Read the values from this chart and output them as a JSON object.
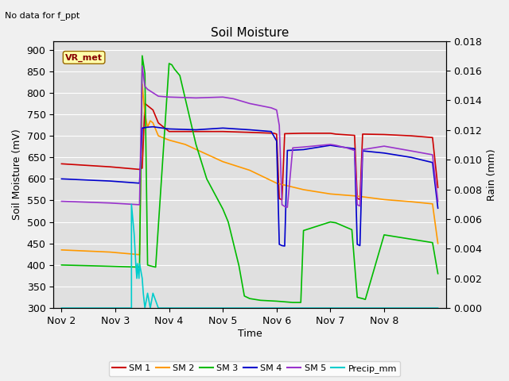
{
  "title": "Soil Moisture",
  "subtitle": "No data for f_ppt",
  "ylabel_left": "Soil Moisture (mV)",
  "ylabel_right": "Rain (mm)",
  "xlabel": "Time",
  "annotation": "VR_met",
  "plot_bg": "#e0e0e0",
  "fig_bg": "#f0f0f0",
  "ylim_left": [
    300,
    920
  ],
  "ylim_right": [
    0.0,
    0.018
  ],
  "xlim": [
    -0.15,
    7.15
  ],
  "yticks_left": [
    300,
    350,
    400,
    450,
    500,
    550,
    600,
    650,
    700,
    750,
    800,
    850,
    900
  ],
  "yticks_right": [
    0.0,
    0.002,
    0.004,
    0.006,
    0.008,
    0.01,
    0.012,
    0.014,
    0.016,
    0.018
  ],
  "xtick_labels": [
    "Nov 2",
    "Nov 3",
    "Nov 4",
    "Nov 5",
    "Nov 6",
    "Nov 7",
    "Nov 8"
  ],
  "xtick_positions": [
    0,
    1,
    2,
    3,
    4,
    5,
    6
  ],
  "SM1_color": "#cc0000",
  "SM2_color": "#ff9900",
  "SM3_color": "#00bb00",
  "SM4_color": "#0000cc",
  "SM5_color": "#9933cc",
  "Precip_color": "#00cccc",
  "SM1": [
    [
      0.0,
      635
    ],
    [
      0.9,
      628
    ],
    [
      1.45,
      622
    ],
    [
      1.5,
      625
    ],
    [
      1.55,
      775
    ],
    [
      1.6,
      770
    ],
    [
      1.7,
      760
    ],
    [
      1.8,
      730
    ],
    [
      2.0,
      710
    ],
    [
      2.5,
      710
    ],
    [
      3.0,
      710
    ],
    [
      3.5,
      708
    ],
    [
      3.95,
      706
    ],
    [
      4.0,
      704
    ],
    [
      4.05,
      554
    ],
    [
      4.1,
      552
    ],
    [
      4.15,
      705
    ],
    [
      4.5,
      706
    ],
    [
      5.0,
      706
    ],
    [
      5.1,
      704
    ],
    [
      5.45,
      701
    ],
    [
      5.5,
      555
    ],
    [
      5.55,
      552
    ],
    [
      5.6,
      704
    ],
    [
      6.0,
      703
    ],
    [
      6.5,
      700
    ],
    [
      6.9,
      696
    ],
    [
      7.0,
      580
    ]
  ],
  "SM2": [
    [
      0.0,
      435
    ],
    [
      0.9,
      430
    ],
    [
      1.45,
      424
    ],
    [
      1.5,
      820
    ],
    [
      1.55,
      750
    ],
    [
      1.6,
      720
    ],
    [
      1.65,
      735
    ],
    [
      1.7,
      730
    ],
    [
      1.8,
      700
    ],
    [
      2.0,
      690
    ],
    [
      2.3,
      680
    ],
    [
      3.0,
      640
    ],
    [
      3.5,
      620
    ],
    [
      4.0,
      590
    ],
    [
      4.5,
      575
    ],
    [
      5.0,
      565
    ],
    [
      5.5,
      560
    ],
    [
      6.0,
      552
    ],
    [
      6.5,
      547
    ],
    [
      6.9,
      542
    ],
    [
      7.0,
      450
    ]
  ],
  "SM3": [
    [
      0.0,
      400
    ],
    [
      0.9,
      397
    ],
    [
      1.45,
      395
    ],
    [
      1.5,
      886
    ],
    [
      1.55,
      845
    ],
    [
      1.6,
      400
    ],
    [
      1.65,
      398
    ],
    [
      1.75,
      395
    ],
    [
      2.0,
      868
    ],
    [
      2.05,
      865
    ],
    [
      2.1,
      855
    ],
    [
      2.2,
      840
    ],
    [
      2.5,
      680
    ],
    [
      2.7,
      600
    ],
    [
      3.0,
      530
    ],
    [
      3.1,
      500
    ],
    [
      3.3,
      398
    ],
    [
      3.4,
      328
    ],
    [
      3.5,
      322
    ],
    [
      3.7,
      318
    ],
    [
      4.0,
      316
    ],
    [
      4.1,
      315
    ],
    [
      4.3,
      313
    ],
    [
      4.45,
      313
    ],
    [
      4.5,
      480
    ],
    [
      5.0,
      500
    ],
    [
      5.1,
      498
    ],
    [
      5.4,
      482
    ],
    [
      5.5,
      325
    ],
    [
      5.6,
      322
    ],
    [
      5.65,
      320
    ],
    [
      6.0,
      470
    ],
    [
      6.5,
      460
    ],
    [
      6.9,
      452
    ],
    [
      7.0,
      380
    ]
  ],
  "SM4": [
    [
      0.0,
      600
    ],
    [
      0.9,
      595
    ],
    [
      1.45,
      590
    ],
    [
      1.5,
      718
    ],
    [
      1.6,
      720
    ],
    [
      1.7,
      721
    ],
    [
      2.0,
      716
    ],
    [
      2.5,
      714
    ],
    [
      3.0,
      718
    ],
    [
      3.5,
      714
    ],
    [
      3.9,
      710
    ],
    [
      4.0,
      688
    ],
    [
      4.05,
      448
    ],
    [
      4.1,
      445
    ],
    [
      4.15,
      444
    ],
    [
      4.2,
      666
    ],
    [
      4.5,
      668
    ],
    [
      5.0,
      678
    ],
    [
      5.1,
      676
    ],
    [
      5.45,
      670
    ],
    [
      5.5,
      448
    ],
    [
      5.55,
      445
    ],
    [
      5.6,
      665
    ],
    [
      6.0,
      660
    ],
    [
      6.5,
      650
    ],
    [
      6.9,
      638
    ],
    [
      7.0,
      532
    ]
  ],
  "SM5": [
    [
      0.0,
      548
    ],
    [
      0.9,
      544
    ],
    [
      1.45,
      540
    ],
    [
      1.5,
      862
    ],
    [
      1.55,
      815
    ],
    [
      1.6,
      808
    ],
    [
      1.7,
      800
    ],
    [
      1.8,
      792
    ],
    [
      2.0,
      790
    ],
    [
      2.5,
      788
    ],
    [
      3.0,
      790
    ],
    [
      3.2,
      786
    ],
    [
      3.5,
      775
    ],
    [
      3.9,
      765
    ],
    [
      4.0,
      760
    ],
    [
      4.05,
      724
    ],
    [
      4.1,
      540
    ],
    [
      4.15,
      536
    ],
    [
      4.2,
      534
    ],
    [
      4.3,
      672
    ],
    [
      4.5,
      674
    ],
    [
      5.0,
      680
    ],
    [
      5.1,
      678
    ],
    [
      5.3,
      672
    ],
    [
      5.45,
      666
    ],
    [
      5.5,
      540
    ],
    [
      5.55,
      537
    ],
    [
      5.6,
      668
    ],
    [
      6.0,
      676
    ],
    [
      6.5,
      665
    ],
    [
      6.9,
      656
    ],
    [
      7.0,
      548
    ]
  ],
  "Precip_x": [
    0.0,
    1.3,
    1.3,
    1.35,
    1.38,
    1.4,
    1.41,
    1.44,
    1.45,
    1.5,
    1.52,
    1.55,
    1.6,
    1.65,
    1.7,
    1.8,
    1.9,
    2.0,
    2.05,
    2.1,
    3.0,
    7.0
  ],
  "Precip_y": [
    0.0,
    0.0,
    0.007,
    0.005,
    0.003,
    0.002,
    0.003,
    0.002,
    0.003,
    0.002,
    0.001,
    0.0,
    0.001,
    0.0,
    0.001,
    0.0,
    0.0,
    0.0,
    0.0,
    0.0,
    0.0,
    0.0
  ]
}
